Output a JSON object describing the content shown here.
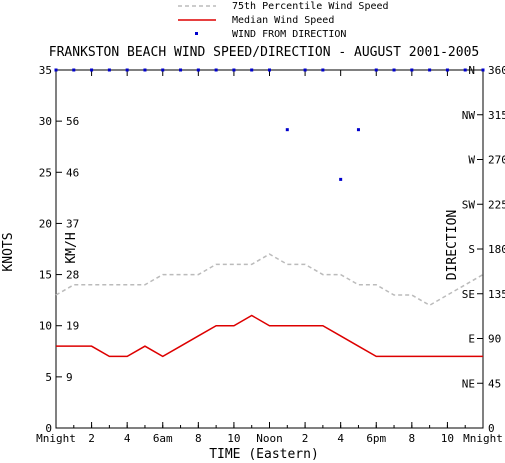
{
  "chart_data": {
    "type": "line",
    "title": "FRANKSTON BEACH WIND SPEED/DIRECTION - AUGUST 2001-2005",
    "xlabel": "TIME (Eastern)",
    "ylabel_left": "KNOTS",
    "ylabel_left_inner": "KM/H",
    "ylabel_right": "DIRECTION",
    "x_tick_labels": [
      "Mnight",
      "2",
      "4",
      "6am",
      "8",
      "10",
      "Noon",
      "2",
      "4",
      "6pm",
      "8",
      "10",
      "Mnight"
    ],
    "xlim": [
      0,
      24
    ],
    "ylim": [
      0,
      35
    ],
    "y_ticks_knots": [
      0,
      5,
      10,
      15,
      20,
      25,
      30,
      35
    ],
    "y_ticks_kmh": [
      {
        "knots": 5,
        "label": "9"
      },
      {
        "knots": 10,
        "label": "19"
      },
      {
        "knots": 15,
        "label": "28"
      },
      {
        "knots": 20,
        "label": "37"
      },
      {
        "knots": 25,
        "label": "46"
      },
      {
        "knots": 30,
        "label": "56"
      }
    ],
    "direction_ticks": [
      {
        "deg": 0,
        "label": ""
      },
      {
        "deg": 45,
        "label": "NE"
      },
      {
        "deg": 90,
        "label": "E"
      },
      {
        "deg": 135,
        "label": "SE"
      },
      {
        "deg": 180,
        "label": "S"
      },
      {
        "deg": 225,
        "label": "SW"
      },
      {
        "deg": 270,
        "label": "W"
      },
      {
        "deg": 315,
        "label": "NW"
      },
      {
        "deg": 360,
        "label": "N"
      }
    ],
    "direction_numeric_ticks": [
      "0",
      "45",
      "90",
      "135",
      "180",
      "225",
      "270",
      "315",
      "360"
    ],
    "legend": [
      {
        "name": "75th Percentile Wind Speed",
        "color": "#bbbbbb",
        "style": "dashed"
      },
      {
        "name": "Median Wind Speed",
        "color": "#dd0000",
        "style": "solid"
      },
      {
        "name": "WIND FROM DIRECTION",
        "color": "#0000cc",
        "style": "dot"
      }
    ],
    "series": [
      {
        "name": "75th Percentile Wind Speed",
        "x": [
          0,
          1,
          2,
          3,
          4,
          5,
          6,
          7,
          8,
          9,
          10,
          11,
          12,
          13,
          14,
          15,
          16,
          17,
          18,
          19,
          20,
          21,
          22,
          23,
          24
        ],
        "values": [
          13,
          14,
          14,
          14,
          14,
          14,
          15,
          15,
          15,
          16,
          16,
          16,
          17,
          16,
          16,
          15,
          15,
          14,
          14,
          13,
          13,
          12,
          13,
          14,
          15
        ]
      },
      {
        "name": "Median Wind Speed",
        "x": [
          0,
          1,
          2,
          3,
          4,
          5,
          6,
          7,
          8,
          9,
          10,
          11,
          12,
          13,
          14,
          15,
          16,
          17,
          18,
          19,
          20,
          21,
          22,
          23,
          24
        ],
        "values": [
          8,
          8,
          8,
          7,
          7,
          8,
          7,
          8,
          9,
          10,
          10,
          11,
          10,
          10,
          10,
          10,
          9,
          8,
          7,
          7,
          7,
          7,
          7,
          7,
          7
        ]
      },
      {
        "name": "WIND FROM DIRECTION",
        "x": [
          0,
          1,
          2,
          3,
          4,
          5,
          6,
          7,
          8,
          9,
          10,
          11,
          12,
          13,
          14,
          15,
          16,
          17,
          18,
          19,
          20,
          21,
          22,
          23,
          24
        ],
        "values": [
          360,
          360,
          360,
          360,
          360,
          360,
          360,
          360,
          360,
          360,
          360,
          360,
          360,
          300,
          360,
          360,
          250,
          300,
          360,
          360,
          360,
          360,
          360,
          360,
          360
        ]
      }
    ],
    "colors": {
      "p75": "#bbbbbb",
      "median": "#dd0000",
      "direction": "#0000cc",
      "axis": "#000000"
    }
  }
}
